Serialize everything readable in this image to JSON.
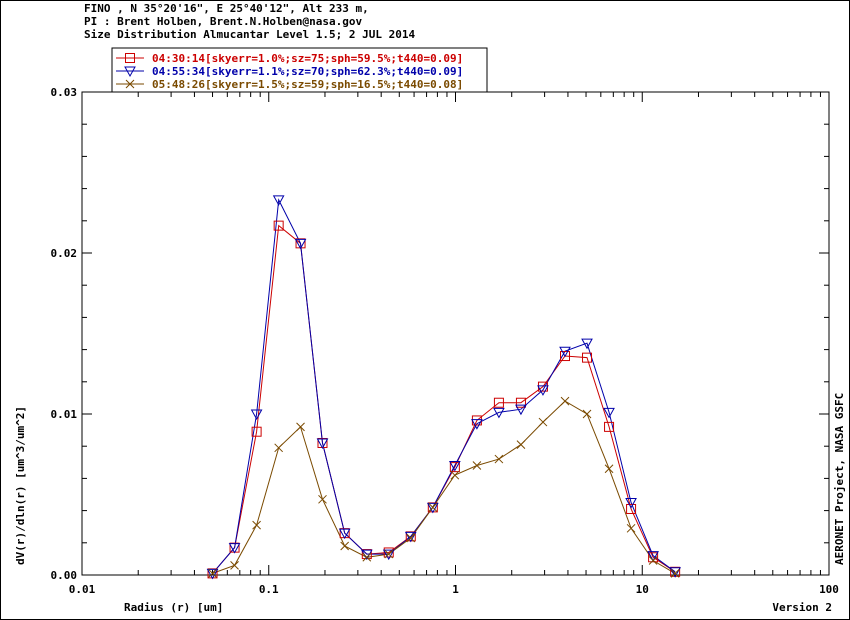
{
  "header": {
    "line1": "FINO , N 35°20'16\", E 25°40'12\", Alt 233 m,",
    "line2": "PI : Brent Holben, Brent.N.Holben@nasa.gov",
    "line3": "Size Distribution Almucantar Level 1.5; 2 JUL 2014"
  },
  "chart_data": {
    "type": "line",
    "title": "Size Distribution Almucantar Level 1.5; 2 JUL 2014",
    "xlabel": "Radius (r) [um]",
    "ylabel": "dV(r)/dln(r) [um^3/um^2]",
    "xscale": "log",
    "xlim": [
      0.01,
      100
    ],
    "ylim": [
      0,
      0.03
    ],
    "xticks": [
      "0.01",
      "0.1",
      "1",
      "10",
      "100"
    ],
    "yticks": [
      "0.00",
      "0.01",
      "0.02",
      "0.03"
    ],
    "right_label": "AERONET Project, NASA GSFC",
    "footer_label": "Version 2",
    "legend_position": "top-left",
    "x": [
      0.05,
      0.0656,
      0.0861,
      0.113,
      0.148,
      0.194,
      0.255,
      0.335,
      0.439,
      0.576,
      0.756,
      0.992,
      1.302,
      1.708,
      2.241,
      2.94,
      3.858,
      5.061,
      6.641,
      8.713,
      11.432,
      15.0
    ],
    "series": [
      {
        "name": "04:30:14[skyerr=1.0%;sz=75;sph=59.5%;t440=0.09]",
        "color": "#cc0000",
        "marker": "square",
        "values": [
          0.0001,
          0.0017,
          0.0089,
          0.0217,
          0.0206,
          0.0082,
          0.0026,
          0.0013,
          0.0014,
          0.0024,
          0.0042,
          0.0067,
          0.0096,
          0.0107,
          0.0107,
          0.0117,
          0.0136,
          0.0135,
          0.0092,
          0.0041,
          0.0011,
          0.0002
        ]
      },
      {
        "name": "04:55:34[skyerr=1.1%;sz=70;sph=62.3%;t440=0.09]",
        "color": "#0000aa",
        "marker": "triangle-down",
        "values": [
          0.0001,
          0.0017,
          0.01,
          0.0233,
          0.0206,
          0.0082,
          0.0026,
          0.0013,
          0.0013,
          0.0024,
          0.0042,
          0.0068,
          0.0094,
          0.0101,
          0.0103,
          0.0115,
          0.0139,
          0.0144,
          0.0101,
          0.0045,
          0.0012,
          0.0002
        ]
      },
      {
        "name": "05:48:26[skyerr=1.5%;sz=59;sph=16.5%;t440=0.08]",
        "color": "#7a4a00",
        "marker": "x",
        "values": [
          0.0001,
          0.0006,
          0.0031,
          0.0079,
          0.0092,
          0.0047,
          0.0018,
          0.0011,
          0.0013,
          0.0023,
          0.0042,
          0.0062,
          0.0068,
          0.0072,
          0.0081,
          0.0095,
          0.0108,
          0.01,
          0.0066,
          0.0029,
          0.0009,
          0.0001
        ]
      }
    ]
  }
}
